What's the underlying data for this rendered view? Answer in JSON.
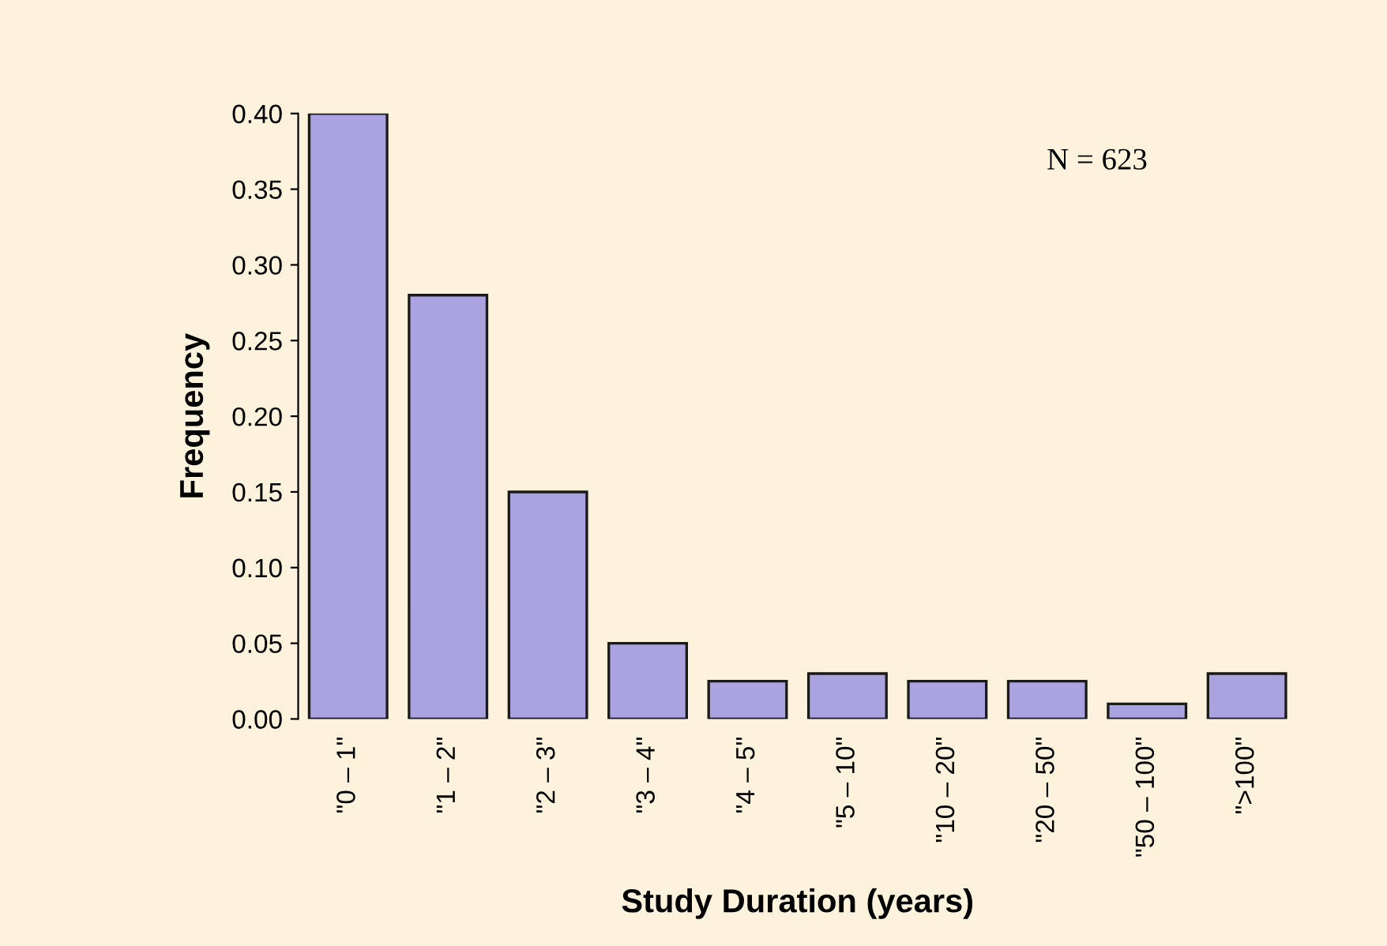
{
  "chart_data": {
    "type": "bar",
    "xlabel": "Study Duration (years)",
    "ylabel": "Frequency",
    "categories": [
      "\"0 – 1\"",
      "\"1 – 2\"",
      "\"2 – 3\"",
      "\"3 – 4\"",
      "\"4 – 5\"",
      "\"5 – 10\"",
      "\"10 – 20\"",
      "\"20 – 50\"",
      "\"50 – 100\"",
      "\">100\""
    ],
    "values": [
      0.4,
      0.28,
      0.15,
      0.05,
      0.025,
      0.03,
      0.025,
      0.025,
      0.01,
      0.03
    ],
    "color": "#aba3e0",
    "ylim": [
      0,
      0.4
    ],
    "yticks": [
      {
        "value": 0,
        "label": "0.00"
      },
      {
        "value": 0.05,
        "label": "0.05"
      },
      {
        "value": 0.1,
        "label": "0.10"
      },
      {
        "value": 0.15,
        "label": "0.15"
      },
      {
        "value": 0.2,
        "label": "0.20"
      },
      {
        "value": 0.25,
        "label": "0.25"
      },
      {
        "value": 0.3,
        "label": "0.30"
      },
      {
        "value": 0.35,
        "label": "0.35"
      },
      {
        "value": 0.4,
        "label": "0.40"
      }
    ],
    "annotations": [
      "N = 623"
    ],
    "grid": false,
    "legend": false
  }
}
